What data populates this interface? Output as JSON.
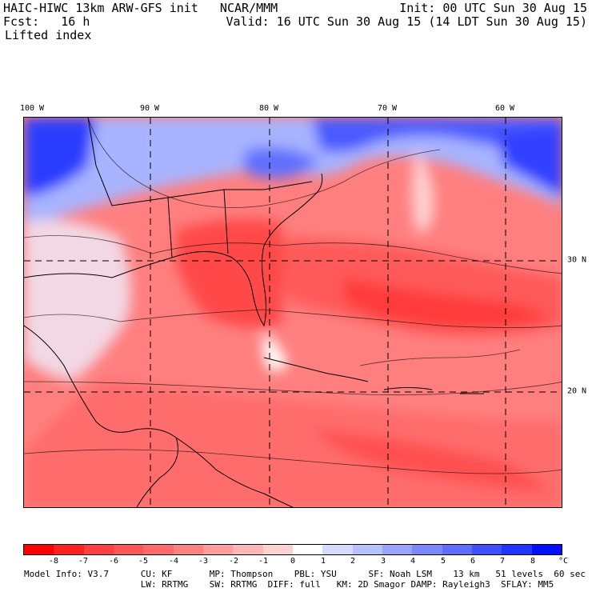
{
  "header": {
    "line1_left": "HAIC-HIWC 13km ARW-GFS init   NCAR/MMM",
    "line1_right": "Init: 00 UTC Sun 30 Aug 15",
    "line2_left": "Fcst:   16 h",
    "line2_right": "Valid: 16 UTC Sun 30 Aug 15 (14 LDT Sun 30 Aug 15)",
    "line3_left": "Lifted index"
  },
  "map": {
    "lon_labels": [
      "100 W",
      "90 W",
      "80 W",
      "70 W",
      "60 W"
    ],
    "lat_labels": [
      "30 N",
      "20 N"
    ]
  },
  "colorbar": {
    "ticks": [
      "-8",
      "-7",
      "-6",
      "-5",
      "-4",
      "-3",
      "-2",
      "-1",
      "0",
      "1",
      "2",
      "3",
      "4",
      "5",
      "6",
      "7",
      "8"
    ],
    "unit": "°C",
    "colors": [
      "#ff0000",
      "#ff2020",
      "#ff4040",
      "#ff5555",
      "#ff6a6a",
      "#ff8282",
      "#ff9c9c",
      "#ffb6b6",
      "#ffd2d2",
      "#ffffff",
      "#d6dcff",
      "#b8c0ff",
      "#9aa4ff",
      "#7d88ff",
      "#5f6cff",
      "#4050ff",
      "#2035ff",
      "#0010ff"
    ]
  },
  "info": {
    "line1": "Model Info: V3.7      CU: KF       MP: Thompson    PBL: YSU      SF: Noah LSM    13 km   51 levels  60 sec",
    "line2": "                      LW: RRTMG    SW: RRTMG  DIFF: full   KM: 2D Smagor DAMP: Rayleigh3  SFLAY: MM5"
  }
}
